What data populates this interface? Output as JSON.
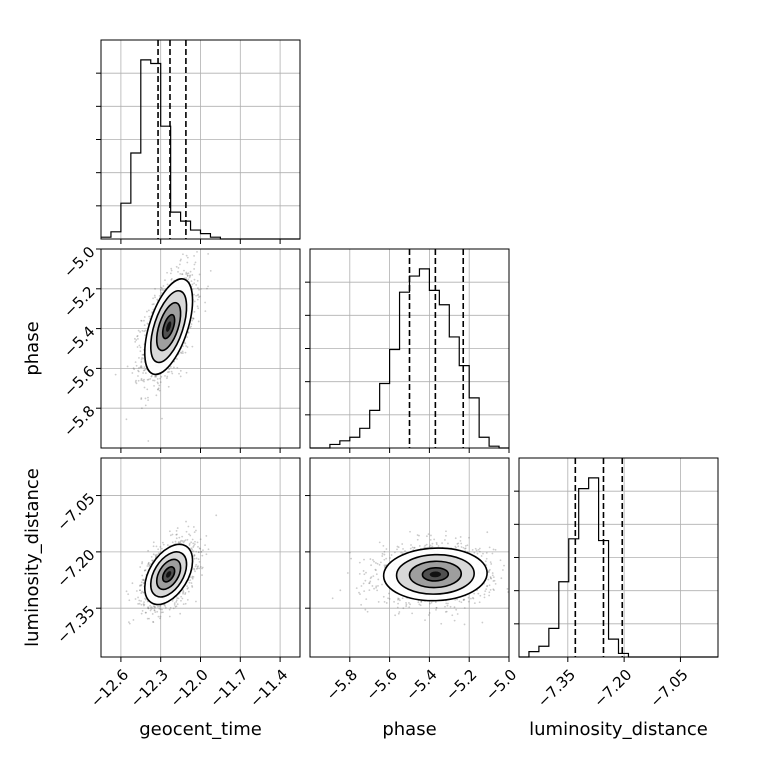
{
  "chart_data": {
    "type": "corner",
    "parameters": [
      "geocent_time",
      "phase",
      "luminosity_distance"
    ],
    "axis_labels": {
      "geocent_time": "geocent_time",
      "phase": "phase",
      "luminosity_distance": "luminosity_distance"
    },
    "ranges": {
      "geocent_time": [
        -12.75,
        -11.25
      ],
      "phase": [
        -6.0,
        -5.0
      ],
      "luminosity_distance": [
        -7.48,
        -6.95
      ]
    },
    "ticks": {
      "geocent_time": {
        "values": [
          -12.6,
          -12.3,
          -12.0,
          -11.7,
          -11.4
        ],
        "labels": [
          "−12.6",
          "−12.3",
          "−12.0",
          "−11.7",
          "−11.4"
        ]
      },
      "phase": {
        "values": [
          -5.8,
          -5.6,
          -5.4,
          -5.2,
          -5.0
        ],
        "labels": [
          "−5.8",
          "−5.6",
          "−5.4",
          "−5.2",
          "−5.0"
        ]
      },
      "luminosity_distance": {
        "values": [
          -7.35,
          -7.2,
          -7.05
        ],
        "labels": [
          "−7.35",
          "−7.20",
          "−7.05"
        ]
      }
    },
    "grid": true,
    "histograms": [
      {
        "parameter": "geocent_time",
        "bin_edges": [
          -12.75,
          -12.675,
          -12.6,
          -12.525,
          -12.45,
          -12.375,
          -12.3,
          -12.225,
          -12.15,
          -12.075,
          -12.0,
          -11.925,
          -11.85,
          -11.775,
          -11.7,
          -11.625,
          -11.55,
          -11.475,
          -11.4,
          -11.325,
          -11.25
        ],
        "counts": [
          0.01,
          0.04,
          0.2,
          0.48,
          1.0,
          0.98,
          0.63,
          0.15,
          0.1,
          0.05,
          0.03,
          0.01,
          0,
          0,
          0,
          0,
          0,
          0,
          0,
          0
        ],
        "quantiles": [
          -12.32,
          -12.23,
          -12.11
        ]
      },
      {
        "parameter": "phase",
        "bin_edges": [
          -6.0,
          -5.95,
          -5.9,
          -5.85,
          -5.8,
          -5.75,
          -5.7,
          -5.65,
          -5.6,
          -5.55,
          -5.5,
          -5.45,
          -5.4,
          -5.35,
          -5.3,
          -5.25,
          -5.2,
          -5.15,
          -5.1,
          -5.05,
          -5.0
        ],
        "counts": [
          0,
          0,
          0.02,
          0.04,
          0.06,
          0.11,
          0.21,
          0.36,
          0.55,
          0.87,
          0.96,
          1.0,
          0.88,
          0.8,
          0.62,
          0.46,
          0.28,
          0.06,
          0.01,
          0
        ],
        "quantiles": [
          -5.5,
          -5.37,
          -5.23
        ]
      },
      {
        "parameter": "luminosity_distance",
        "bin_edges": [
          -7.48,
          -7.4535,
          -7.427,
          -7.4005,
          -7.374,
          -7.3475,
          -7.321,
          -7.2945,
          -7.268,
          -7.2415,
          -7.215,
          -7.1885,
          -7.162,
          -7.1355,
          -7.109,
          -7.0825,
          -7.056,
          -7.0295,
          -7.003,
          -6.9765,
          -6.95
        ],
        "counts": [
          0,
          0.03,
          0.06,
          0.16,
          0.42,
          0.66,
          0.94,
          1.0,
          0.65,
          0.1,
          0.02,
          0,
          0,
          0,
          0,
          0,
          0,
          0,
          0,
          0
        ],
        "quantiles": [
          -7.33,
          -7.255,
          -7.205
        ]
      }
    ],
    "scatter_panels": [
      {
        "x": "geocent_time",
        "y": "phase",
        "mean": [
          -12.24,
          -5.39
        ],
        "std": [
          0.09,
          0.12
        ],
        "corr": 0.55,
        "contours": [
          0.5,
          1.0,
          1.5,
          2.0
        ]
      },
      {
        "x": "geocent_time",
        "y": "luminosity_distance",
        "mean": [
          -12.24,
          -7.26
        ],
        "std": [
          0.09,
          0.04
        ],
        "corr": 0.45,
        "contours": [
          0.5,
          1.0,
          1.5,
          2.0
        ]
      },
      {
        "x": "phase",
        "y": "luminosity_distance",
        "mean": [
          -5.37,
          -7.26
        ],
        "std": [
          0.13,
          0.035
        ],
        "corr": 0.05,
        "contours": [
          0.5,
          1.0,
          1.5,
          2.0
        ]
      }
    ]
  }
}
